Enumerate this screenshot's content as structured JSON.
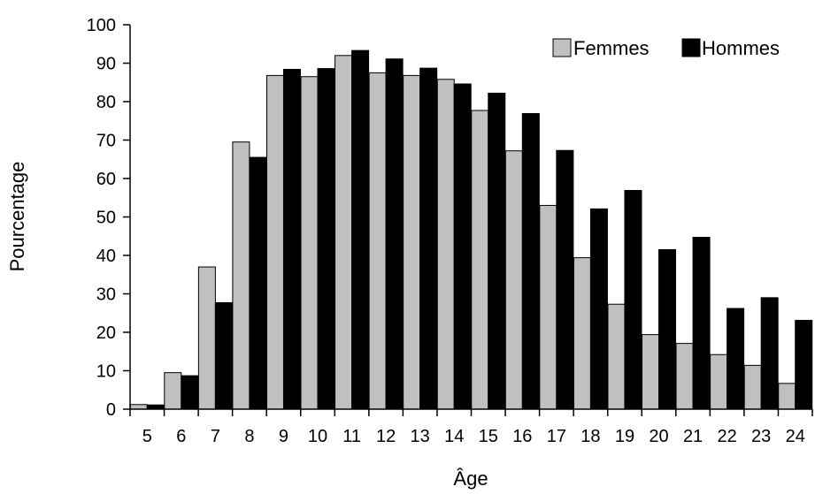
{
  "chart_data": {
    "type": "bar",
    "title": "",
    "xlabel": "Âge",
    "ylabel": "Pourcentage",
    "categories": [
      "5",
      "6",
      "7",
      "8",
      "9",
      "10",
      "11",
      "12",
      "13",
      "14",
      "15",
      "16",
      "17",
      "18",
      "19",
      "20",
      "21",
      "22",
      "23",
      "24"
    ],
    "series": [
      {
        "name": "Femmes",
        "color": "#c0c0c0",
        "values": [
          1.2,
          9.5,
          37.0,
          69.5,
          86.8,
          86.5,
          92.0,
          87.5,
          86.8,
          85.8,
          77.7,
          67.2,
          53.0,
          39.4,
          27.3,
          19.4,
          17.1,
          14.2,
          11.4,
          6.7
        ]
      },
      {
        "name": "Hommes",
        "color": "#000000",
        "values": [
          1.1,
          8.7,
          27.7,
          65.5,
          88.4,
          88.6,
          93.3,
          91.1,
          88.7,
          84.6,
          82.2,
          76.9,
          67.3,
          52.1,
          56.9,
          41.5,
          44.7,
          26.2,
          29.0,
          23.1
        ]
      }
    ],
    "ylim": [
      0,
      100
    ],
    "yticks": [
      0,
      10,
      20,
      30,
      40,
      50,
      60,
      70,
      80,
      90,
      100
    ],
    "grid": false,
    "legend_position": "top-right"
  }
}
